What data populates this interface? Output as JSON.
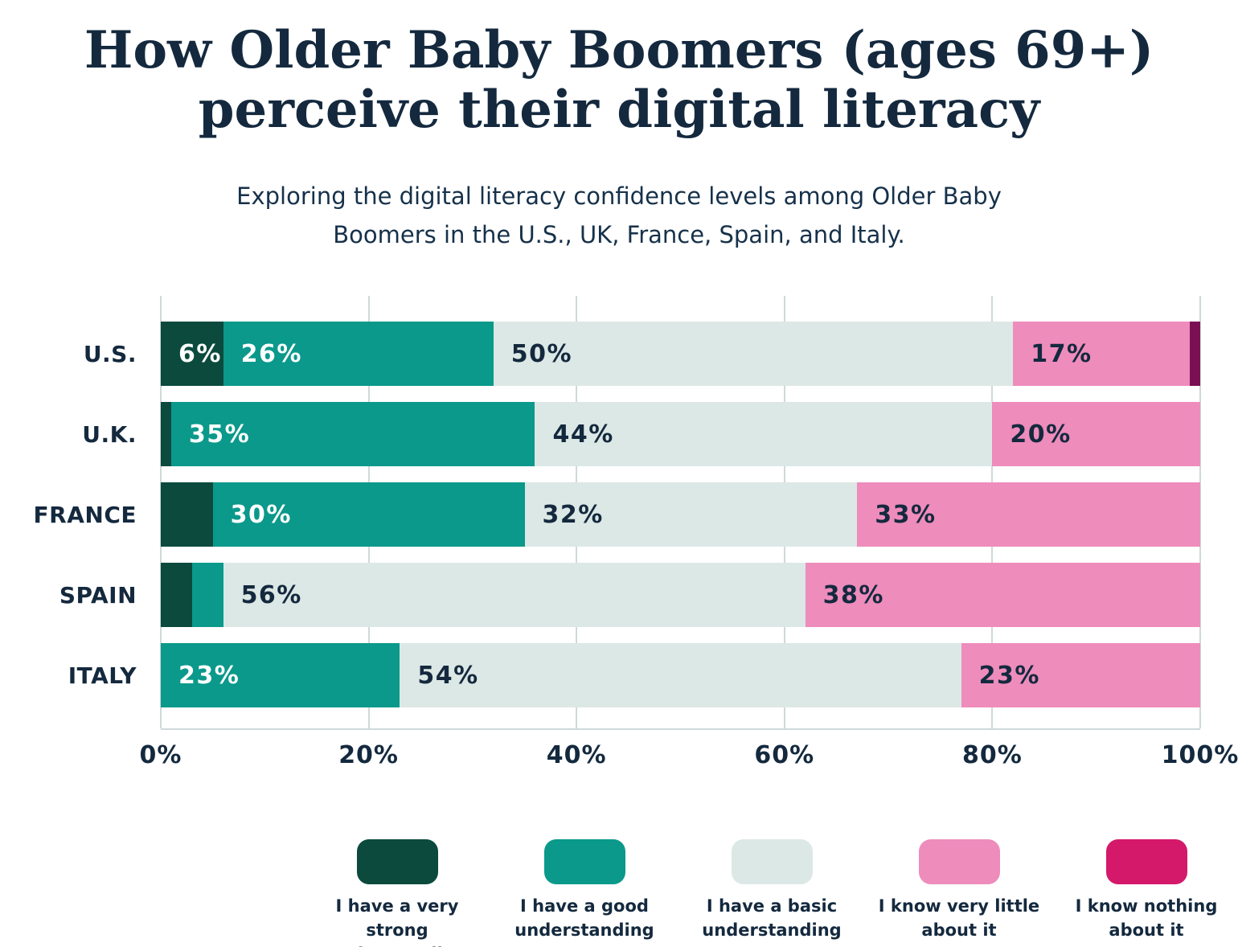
{
  "title": {
    "line1": "How Older Baby Boomers (ages 69+)",
    "line2": "perceive their digital literacy"
  },
  "subtitle": {
    "line1": "Exploring the digital literacy confidence levels among Older Baby",
    "line2": "Boomers in the U.S., UK, France, Spain, and Italy."
  },
  "colors": {
    "navy_text": "#14293e",
    "very_strong": "#0b4a3d",
    "good": "#0a998b",
    "basic": "#dce8e5",
    "very_little": "#ee8cbc",
    "nothing_bar": "#7a1053",
    "nothing_legend": "#d4196b",
    "gridline": "#cfd9da",
    "background": "#ffffff"
  },
  "chart_data": {
    "type": "bar",
    "orientation": "horizontal",
    "stacked": true,
    "grid": true,
    "xlim": [
      0,
      100
    ],
    "x_tick_labels": [
      "0%",
      "20%",
      "40%",
      "60%",
      "80%",
      "100%"
    ],
    "categories": [
      "U.S.",
      "U.K.",
      "FRANCE",
      "SPAIN",
      "ITALY"
    ],
    "series": [
      {
        "name": "I have a very strong understanding",
        "color": "#0b4a3d",
        "text_color": "#ffffff",
        "values": [
          6,
          1,
          5,
          3,
          0
        ]
      },
      {
        "name": "I have a good understanding",
        "color": "#0a998b",
        "text_color": "#ffffff",
        "values": [
          26,
          35,
          30,
          3,
          23
        ]
      },
      {
        "name": "I have a basic understanding",
        "color": "#dce8e5",
        "text_color": "#14293e",
        "values": [
          50,
          44,
          32,
          56,
          54
        ]
      },
      {
        "name": "I know very little about it",
        "color": "#ee8cbc",
        "text_color": "#14293e",
        "values": [
          17,
          20,
          33,
          38,
          23
        ]
      },
      {
        "name": "I know nothing about it",
        "color": "#7a1053",
        "legend_color": "#d4196b",
        "text_color": "#ffffff",
        "values": [
          1,
          0,
          0,
          0,
          0
        ]
      }
    ],
    "bar_labels": [
      [
        "6%",
        "26%",
        "50%",
        "17%",
        ""
      ],
      [
        "",
        "35%",
        "44%",
        "20%",
        ""
      ],
      [
        "",
        "30%",
        "32%",
        "33%",
        ""
      ],
      [
        "",
        "",
        "56%",
        "38%",
        ""
      ],
      [
        "",
        "23%",
        "54%",
        "23%",
        ""
      ]
    ],
    "legend_position": "bottom"
  },
  "legend": {
    "items": [
      "I have a very strong understanding",
      "I have a good understanding",
      "I have a basic understanding",
      "I know very little about it",
      "I know nothing about it"
    ]
  }
}
